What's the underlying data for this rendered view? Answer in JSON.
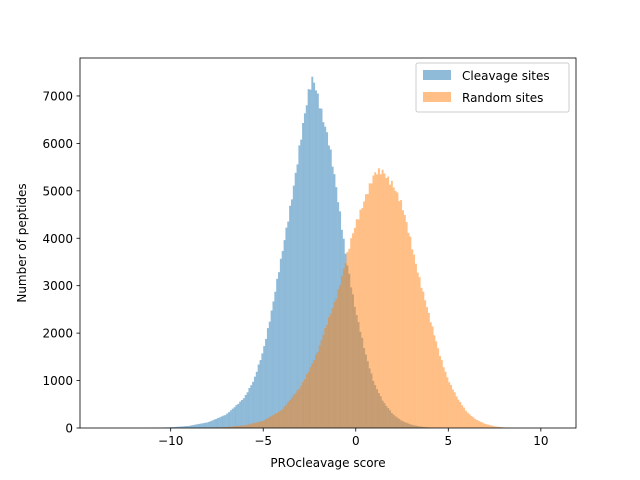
{
  "chart_data": {
    "type": "histogram",
    "xlabel": "PROcleavage score",
    "ylabel": "Number of peptides",
    "xlim": [
      -14.9,
      11.9
    ],
    "ylim": [
      0,
      7800
    ],
    "xticks": [
      -10,
      -5,
      0,
      5,
      10
    ],
    "xtick_labels": [
      "−10",
      "−5",
      "0",
      "5",
      "10"
    ],
    "yticks": [
      0,
      1000,
      2000,
      3000,
      4000,
      5000,
      6000,
      7000
    ],
    "ytick_labels": [
      "0",
      "1000",
      "2000",
      "3000",
      "4000",
      "5000",
      "6000",
      "7000"
    ],
    "bin_width": 0.1,
    "legend_position": "top-right",
    "grid": false,
    "series": [
      {
        "name": "Cleavage sites",
        "color": "#1f77b4",
        "alpha": 0.5,
        "curve_points": [
          [
            -13.5,
            0
          ],
          [
            -11,
            3
          ],
          [
            -10,
            15
          ],
          [
            -9,
            45
          ],
          [
            -8,
            120
          ],
          [
            -7,
            280
          ],
          [
            -6,
            650
          ],
          [
            -5.5,
            1000
          ],
          [
            -5,
            1650
          ],
          [
            -4.5,
            2550
          ],
          [
            -4,
            3600
          ],
          [
            -3.5,
            4800
          ],
          [
            -3,
            6000
          ],
          [
            -2.5,
            7100
          ],
          [
            -2.3,
            7400
          ],
          [
            -2,
            7000
          ],
          [
            -1.5,
            6100
          ],
          [
            -1,
            4900
          ],
          [
            -0.5,
            3600
          ],
          [
            0,
            2450
          ],
          [
            0.5,
            1600
          ],
          [
            1,
            950
          ],
          [
            1.5,
            540
          ],
          [
            2,
            290
          ],
          [
            2.5,
            150
          ],
          [
            3,
            70
          ],
          [
            3.5,
            30
          ],
          [
            4,
            10
          ],
          [
            4.5,
            3
          ],
          [
            5,
            0
          ]
        ]
      },
      {
        "name": "Random sites",
        "color": "#ff7f0e",
        "alpha": 0.5,
        "curve_points": [
          [
            -9,
            0
          ],
          [
            -8,
            5
          ],
          [
            -7,
            20
          ],
          [
            -6,
            55
          ],
          [
            -5,
            150
          ],
          [
            -4,
            380
          ],
          [
            -3,
            850
          ],
          [
            -2,
            1650
          ],
          [
            -1,
            2850
          ],
          [
            -0.5,
            3550
          ],
          [
            0,
            4300
          ],
          [
            0.5,
            4900
          ],
          [
            1,
            5300
          ],
          [
            1.5,
            5400
          ],
          [
            2,
            5200
          ],
          [
            2.5,
            4650
          ],
          [
            3,
            3900
          ],
          [
            3.5,
            3100
          ],
          [
            4,
            2300
          ],
          [
            4.5,
            1600
          ],
          [
            5,
            1020
          ],
          [
            5.5,
            620
          ],
          [
            6,
            340
          ],
          [
            6.5,
            180
          ],
          [
            7,
            85
          ],
          [
            7.5,
            35
          ],
          [
            8,
            12
          ],
          [
            8.5,
            3
          ],
          [
            9,
            0
          ],
          [
            11,
            0
          ]
        ]
      }
    ]
  }
}
